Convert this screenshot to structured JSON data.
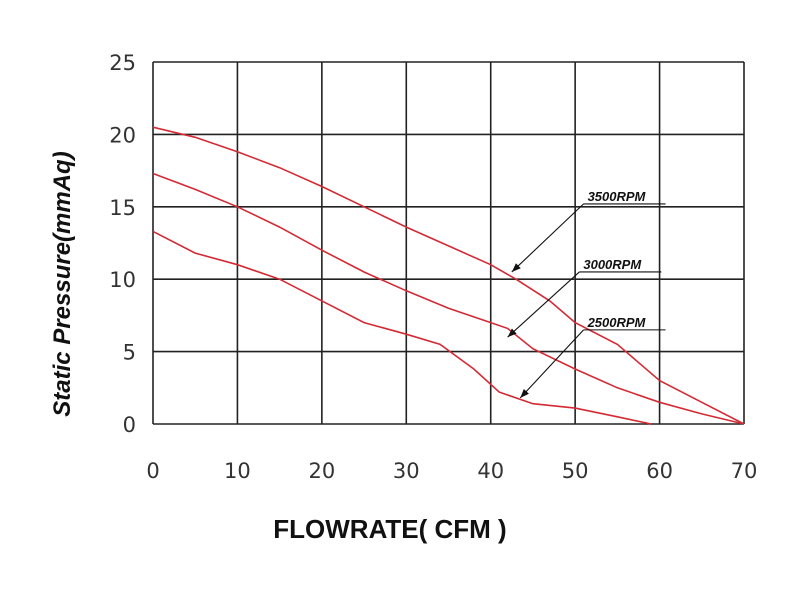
{
  "chart_data": {
    "type": "line",
    "xlabel": "FLOWRATE( CFM )",
    "ylabel": "Static Pressure(mmAq)",
    "xlim": [
      0,
      70
    ],
    "ylim": [
      0,
      25
    ],
    "x_ticks": [
      0,
      10,
      20,
      30,
      40,
      50,
      60,
      70
    ],
    "y_ticks": [
      0,
      5,
      10,
      15,
      20,
      25
    ],
    "grid": true,
    "line_color": "#d42a34",
    "series": [
      {
        "name": "3500RPM",
        "points": [
          [
            0,
            20.5
          ],
          [
            5,
            19.8
          ],
          [
            10,
            18.8
          ],
          [
            15,
            17.7
          ],
          [
            20,
            16.4
          ],
          [
            25,
            15.0
          ],
          [
            30,
            13.6
          ],
          [
            35,
            12.3
          ],
          [
            40,
            11.0
          ],
          [
            43,
            10.0
          ],
          [
            47,
            8.5
          ],
          [
            50,
            7.0
          ],
          [
            55,
            5.5
          ],
          [
            60,
            3.0
          ],
          [
            65,
            1.5
          ],
          [
            70,
            0
          ]
        ]
      },
      {
        "name": "3000RPM",
        "points": [
          [
            0,
            17.3
          ],
          [
            5,
            16.2
          ],
          [
            10,
            15.0
          ],
          [
            15,
            13.6
          ],
          [
            20,
            12.0
          ],
          [
            25,
            10.5
          ],
          [
            30,
            9.2
          ],
          [
            35,
            8.0
          ],
          [
            40,
            7.0
          ],
          [
            42,
            6.6
          ],
          [
            45,
            5.2
          ],
          [
            50,
            3.8
          ],
          [
            55,
            2.5
          ],
          [
            60,
            1.5
          ],
          [
            65,
            0.7
          ],
          [
            70,
            0
          ]
        ]
      },
      {
        "name": "2500RPM",
        "points": [
          [
            0,
            13.3
          ],
          [
            5,
            11.8
          ],
          [
            10,
            11.0
          ],
          [
            15,
            10.0
          ],
          [
            20,
            8.5
          ],
          [
            25,
            7.0
          ],
          [
            30,
            6.2
          ],
          [
            34,
            5.5
          ],
          [
            38,
            3.8
          ],
          [
            41,
            2.2
          ],
          [
            45,
            1.4
          ],
          [
            50,
            1.1
          ],
          [
            55,
            0.5
          ],
          [
            59,
            0
          ]
        ]
      }
    ],
    "annotations": [
      {
        "text": "3500RPM",
        "arrow_to": [
          42.5,
          10.5
        ],
        "label_at": [
          51,
          15.2
        ]
      },
      {
        "text": "3000RPM",
        "arrow_to": [
          42.0,
          6.0
        ],
        "label_at": [
          50.5,
          10.5
        ]
      },
      {
        "text": "2500RPM",
        "arrow_to": [
          43.5,
          1.8
        ],
        "label_at": [
          51,
          6.5
        ]
      }
    ]
  }
}
